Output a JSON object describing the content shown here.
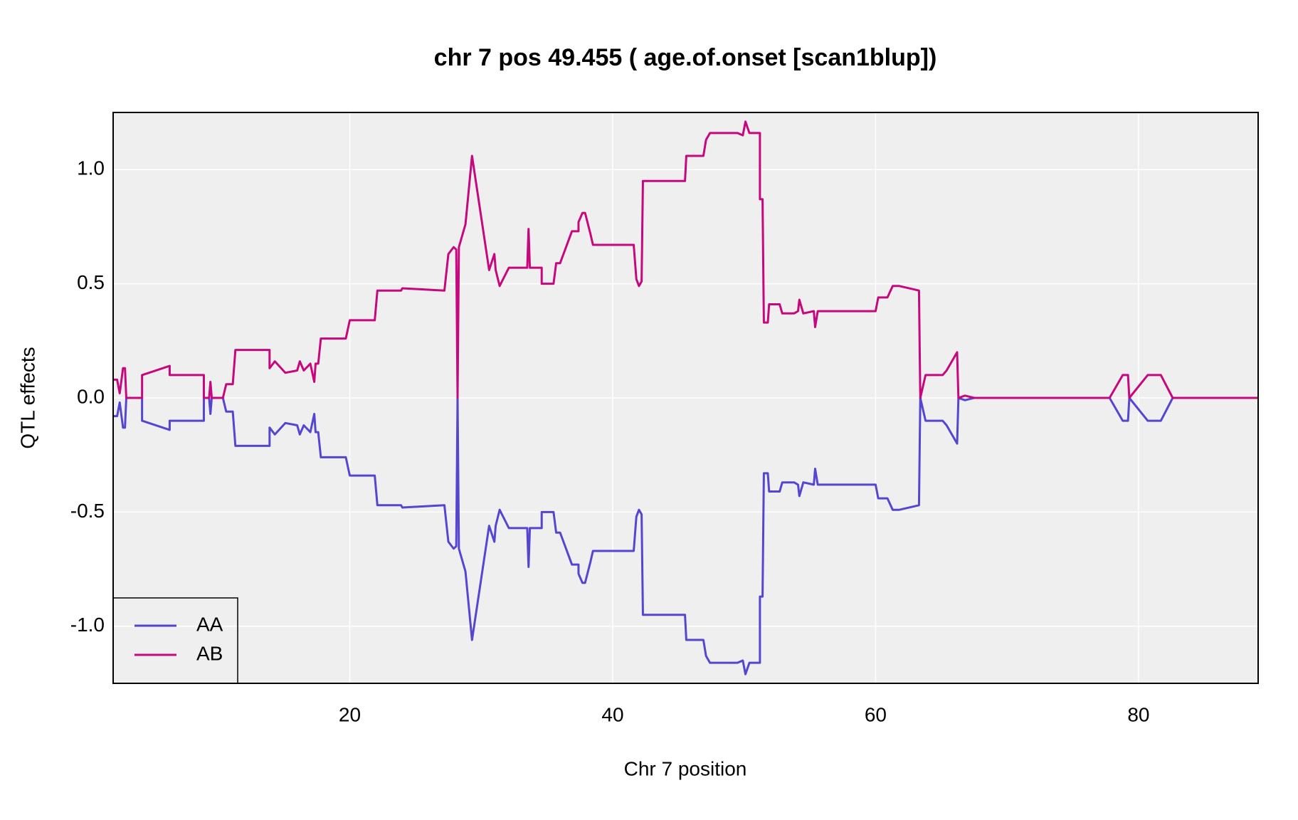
{
  "chart_data": {
    "type": "line",
    "title": "chr 7 pos 49.455 ( age.of.onset  [scan1blup])",
    "xlabel": "Chr 7 position",
    "ylabel": "QTL effects",
    "xlim": [
      2.0,
      89.1
    ],
    "ylim": [
      -1.25,
      1.25
    ],
    "xticks": [
      20,
      40,
      60,
      80
    ],
    "yticks": [
      {
        "value": -1,
        "label": "-1.0"
      },
      -0.5,
      {
        "value": 0,
        "label": "0.0"
      },
      0.5,
      {
        "value": 1,
        "label": "1.0"
      }
    ],
    "grid": true,
    "legend": "bottom-left",
    "x": [
      2.0,
      2.3,
      2.5,
      2.75,
      2.9,
      3.0,
      4.2,
      4.2,
      6.3,
      6.3,
      8.9,
      8.9,
      9.3,
      9.4,
      9.5,
      10.35,
      10.6,
      11.1,
      11.3,
      13.9,
      13.9,
      14.3,
      15.1,
      16.0,
      16.2,
      16.5,
      17.0,
      17.3,
      17.4,
      17.6,
      17.8,
      19.7,
      20.0,
      21.9,
      22.1,
      23.9,
      24.0,
      27.2,
      27.5,
      27.9,
      28.1,
      28.2,
      28.3,
      28.8,
      29.3,
      30.6,
      31.0,
      31.1,
      31.4,
      32.1,
      33.5,
      33.6,
      33.7,
      34.6,
      34.6,
      35.5,
      35.7,
      36.0,
      36.9,
      37.4,
      37.4,
      37.7,
      37.9,
      38.3,
      38.5,
      39.9,
      40.1,
      41.6,
      41.8,
      42.0,
      42.2,
      42.3,
      45.5,
      45.6,
      46.9,
      47.1,
      47.4,
      49.5,
      49.9,
      50.1,
      50.4,
      51.2,
      51.2,
      51.4,
      51.5,
      51.8,
      51.9,
      52.7,
      52.9,
      53.8,
      54.1,
      54.2,
      54.5,
      55.3,
      55.4,
      55.6,
      60.0,
      60.2,
      60.9,
      61.3,
      61.8,
      63.3,
      63.4,
      63.8,
      65.1,
      65.4,
      66.2,
      66.3,
      66.8,
      67.5,
      77.8,
      78.8,
      79.2,
      79.3,
      80.7,
      81.7,
      82.6,
      89.1
    ],
    "series": [
      {
        "name": "AA",
        "color": "#5546cf",
        "values": [
          -0.08,
          -0.08,
          -0.02,
          -0.13,
          -0.13,
          0.0,
          0.0,
          -0.1,
          -0.14,
          -0.1,
          -0.1,
          0.0,
          0.0,
          -0.07,
          0.0,
          0.0,
          -0.06,
          -0.06,
          -0.21,
          -0.21,
          -0.13,
          -0.16,
          -0.11,
          -0.12,
          -0.16,
          -0.12,
          -0.15,
          -0.07,
          -0.15,
          -0.15,
          -0.26,
          -0.26,
          -0.34,
          -0.34,
          -0.47,
          -0.47,
          -0.48,
          -0.47,
          -0.63,
          -0.66,
          -0.65,
          0.0,
          -0.66,
          -0.76,
          -1.06,
          -0.56,
          -0.63,
          -0.56,
          -0.49,
          -0.57,
          -0.57,
          -0.74,
          -0.57,
          -0.57,
          -0.5,
          -0.5,
          -0.59,
          -0.59,
          -0.73,
          -0.73,
          -0.77,
          -0.81,
          -0.81,
          -0.72,
          -0.67,
          -0.67,
          -0.67,
          -0.67,
          -0.52,
          -0.49,
          -0.51,
          -0.95,
          -0.95,
          -1.06,
          -1.06,
          -1.13,
          -1.16,
          -1.16,
          -1.15,
          -1.21,
          -1.16,
          -1.16,
          -0.87,
          -0.87,
          -0.33,
          -0.33,
          -0.41,
          -0.41,
          -0.37,
          -0.37,
          -0.38,
          -0.43,
          -0.37,
          -0.38,
          -0.31,
          -0.38,
          -0.38,
          -0.44,
          -0.44,
          -0.49,
          -0.49,
          -0.47,
          0.0,
          -0.1,
          -0.1,
          -0.12,
          -0.2,
          0.0,
          -0.01,
          0.0,
          0.0,
          -0.1,
          -0.1,
          0.0,
          -0.1,
          -0.1,
          0.0,
          0.0
        ]
      },
      {
        "name": "AB",
        "color": "#c6087e",
        "values": [
          0.08,
          0.08,
          0.02,
          0.13,
          0.13,
          0.0,
          0.0,
          0.1,
          0.14,
          0.1,
          0.1,
          0.0,
          0.0,
          0.07,
          0.0,
          0.0,
          0.06,
          0.06,
          0.21,
          0.21,
          0.13,
          0.16,
          0.11,
          0.12,
          0.16,
          0.12,
          0.15,
          0.07,
          0.15,
          0.15,
          0.26,
          0.26,
          0.34,
          0.34,
          0.47,
          0.47,
          0.48,
          0.47,
          0.63,
          0.66,
          0.65,
          0.0,
          0.66,
          0.76,
          1.06,
          0.56,
          0.63,
          0.56,
          0.49,
          0.57,
          0.57,
          0.74,
          0.57,
          0.57,
          0.5,
          0.5,
          0.59,
          0.59,
          0.73,
          0.73,
          0.77,
          0.81,
          0.81,
          0.72,
          0.67,
          0.67,
          0.67,
          0.67,
          0.52,
          0.49,
          0.51,
          0.95,
          0.95,
          1.06,
          1.06,
          1.13,
          1.16,
          1.16,
          1.15,
          1.21,
          1.16,
          1.16,
          0.87,
          0.87,
          0.33,
          0.33,
          0.41,
          0.41,
          0.37,
          0.37,
          0.38,
          0.43,
          0.37,
          0.38,
          0.31,
          0.38,
          0.38,
          0.44,
          0.44,
          0.49,
          0.49,
          0.47,
          0.0,
          0.1,
          0.1,
          0.12,
          0.2,
          0.0,
          0.01,
          0.0,
          0.0,
          0.1,
          0.1,
          0.0,
          0.1,
          0.1,
          0.0,
          0.0
        ]
      }
    ]
  }
}
